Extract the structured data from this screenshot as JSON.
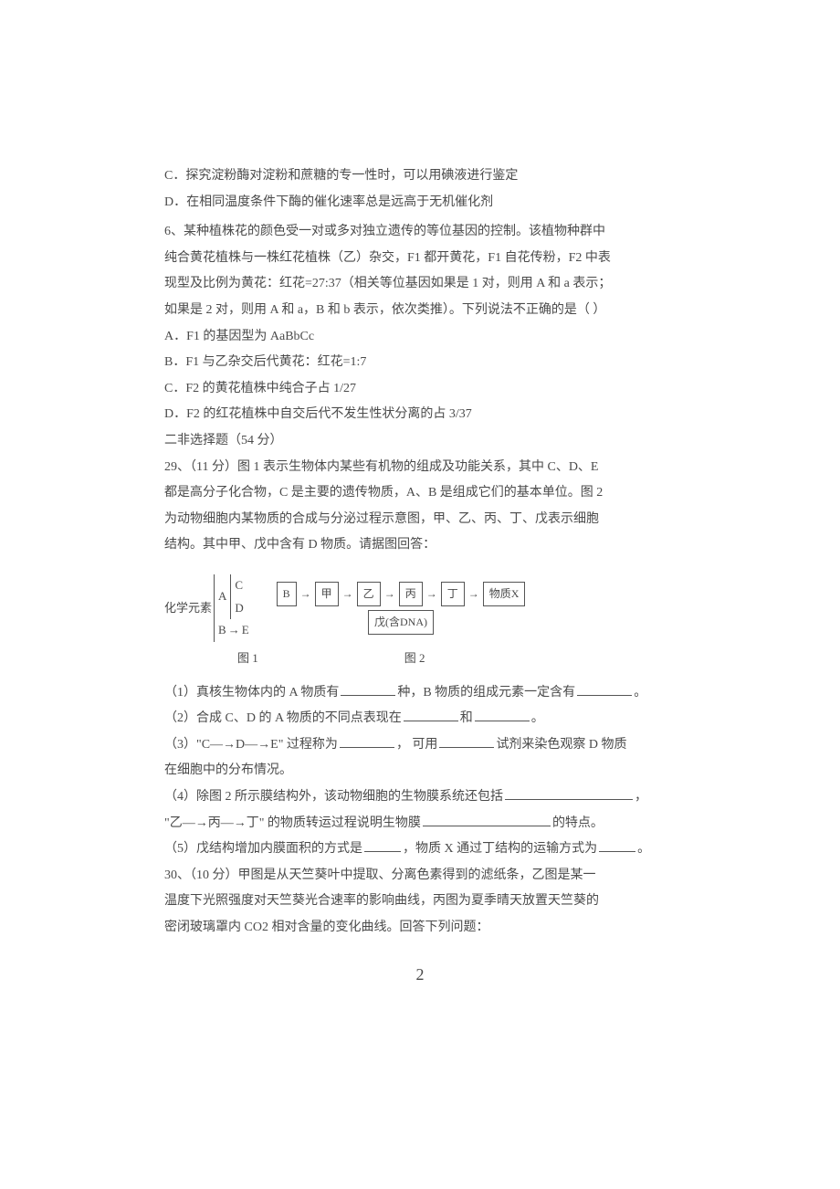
{
  "text_color": "#4a4a4a",
  "background_color": "#ffffff",
  "font_size_body": 14,
  "line_height": 1.9,
  "options_top": {
    "c": "C．探究淀粉酶对淀粉和蔗糖的专一性时，可以用碘液进行鉴定",
    "d": "D．在相同温度条件下酶的催化速率总是远高于无机催化剂"
  },
  "q6": {
    "stem1": "6、某种植株花的颜色受一对或多对独立遗传的等位基因的控制。该植物种群中",
    "stem2": "纯合黄花植株与一株红花植株（乙）杂交，F1 都开黄花，F1 自花传粉，F2 中表",
    "stem3": "现型及比例为黄花：红花=27:37（相关等位基因如果是 1 对，则用 A 和 a 表示；",
    "stem4": "如果是 2 对，则用 A 和 a，B 和 b 表示，依次类推）。下列说法不正确的是（  ）",
    "opts": {
      "a": "A．F1 的基因型为 AaBbCc",
      "b": "B．F1 与乙杂交后代黄花：红花=1:7",
      "c": "C．F2 的黄花植株中纯合子占 1/27",
      "d": "D．F2 的红花植株中自交后代不发生性状分离的占 3/37"
    }
  },
  "section2": "二非选择题（54 分）",
  "q29": {
    "l1": "29、（11 分）图 1 表示生物体内某些有机物的组成及功能关系，其中 C、D、E",
    "l2": "都是高分子化合物，C 是主要的遗传物质，A、B 是组成它们的基本单位。图 2",
    "l3": "为动物细胞内某物质的合成与分泌过程示意图，甲、乙、丙、丁、戊表示细胞",
    "l4": "结构。其中甲、戊中含有 D 物质。请据图回答：",
    "dia1": {
      "root": "化学元素",
      "a": "A",
      "b": "B",
      "c": "C",
      "d": "D",
      "e": "E"
    },
    "dia2": {
      "b": "B",
      "jia": "甲",
      "yi": "乙",
      "bing": "丙",
      "ding": "丁",
      "wuzhi": "物质X",
      "wu": "戊(含DNA)",
      "arrow": "→"
    },
    "cap1": "图 1",
    "cap2": "图 2",
    "sub1a": "（1）真核生物体内的 A 物质有",
    "sub1b": "种，B 物质的组成元素一定含有",
    "sub1c": "。",
    "sub2a": "（2）合成 C、D 的 A 物质的不同点表现在",
    "sub2b": "和",
    "sub2c": "。",
    "sub3a": "（3）\"C—→D—→E\" 过程称为",
    "sub3b": "， 可用",
    "sub3c": "试剂来染色观察 D 物质",
    "sub3d": "在细胞中的分布情况。",
    "sub4a": "（4）除图 2 所示膜结构外，该动物细胞的生物膜系统还包括",
    "sub4b": "，",
    "sub4c": "\"乙—→丙—→丁\" 的物质转运过程说明生物膜",
    "sub4d": "的特点。",
    "sub5a": "（5）戊结构增加内膜面积的方式是",
    "sub5b": "，物质 X 通过丁结构的运输方式为",
    "sub5c": "。"
  },
  "q30": {
    "l1": "30、（10 分）甲图是从天竺葵叶中提取、分离色素得到的滤纸条，乙图是某一",
    "l2": "温度下光照强度对天竺葵光合速率的影响曲线，丙图为夏季晴天放置天竺葵的",
    "l3": "密闭玻璃罩内 CO2 相对含量的变化曲线。回答下列问题："
  },
  "page_number": "2"
}
